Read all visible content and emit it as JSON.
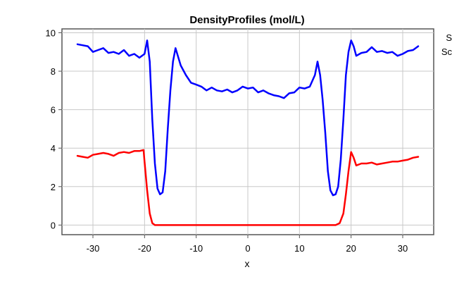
{
  "chart_data": {
    "type": "line",
    "title": "DensityProfiles (mol/L)",
    "xlabel": "x",
    "ylabel": "",
    "xlim": [
      -36,
      36
    ],
    "ylim": [
      -0.5,
      10.2
    ],
    "grid": true,
    "x_ticks": [
      -30,
      -20,
      -10,
      0,
      10,
      20,
      30
    ],
    "y_ticks": [
      0,
      2,
      4,
      6,
      8,
      10
    ],
    "tick_labels_x": [
      "-30",
      "-20",
      "-10",
      "0",
      "10",
      "20",
      "30"
    ],
    "tick_labels_y": [
      "0",
      "2",
      "4",
      "6",
      "8",
      "10"
    ],
    "legend": {
      "placement": "right, outside plot (cut off)",
      "entries": [
        "S",
        "Sc"
      ]
    },
    "series": [
      {
        "color": "#0000ff",
        "points": [
          [
            -33,
            9.4
          ],
          [
            -32,
            9.35
          ],
          [
            -31,
            9.3
          ],
          [
            -30,
            9.0
          ],
          [
            -29,
            9.1
          ],
          [
            -28,
            9.2
          ],
          [
            -27,
            8.95
          ],
          [
            -26,
            9.0
          ],
          [
            -25,
            8.9
          ],
          [
            -24,
            9.1
          ],
          [
            -23,
            8.8
          ],
          [
            -22,
            8.9
          ],
          [
            -21,
            8.7
          ],
          [
            -20,
            8.9
          ],
          [
            -19.5,
            9.6
          ],
          [
            -19,
            8.5
          ],
          [
            -18.5,
            5.5
          ],
          [
            -18,
            3.2
          ],
          [
            -17.5,
            1.9
          ],
          [
            -17,
            1.6
          ],
          [
            -16.5,
            1.7
          ],
          [
            -16,
            2.8
          ],
          [
            -15.5,
            5.0
          ],
          [
            -15,
            7.0
          ],
          [
            -14.5,
            8.5
          ],
          [
            -14,
            9.2
          ],
          [
            -13,
            8.3
          ],
          [
            -12,
            7.8
          ],
          [
            -11,
            7.4
          ],
          [
            -10,
            7.3
          ],
          [
            -9,
            7.2
          ],
          [
            -8,
            7.0
          ],
          [
            -7,
            7.15
          ],
          [
            -6,
            7.0
          ],
          [
            -5,
            6.95
          ],
          [
            -4,
            7.05
          ],
          [
            -3,
            6.9
          ],
          [
            -2,
            7.0
          ],
          [
            -1,
            7.2
          ],
          [
            0,
            7.1
          ],
          [
            1,
            7.15
          ],
          [
            2,
            6.9
          ],
          [
            3,
            7.0
          ],
          [
            4,
            6.85
          ],
          [
            5,
            6.75
          ],
          [
            6,
            6.7
          ],
          [
            7,
            6.6
          ],
          [
            8,
            6.85
          ],
          [
            9,
            6.9
          ],
          [
            10,
            7.15
          ],
          [
            11,
            7.1
          ],
          [
            12,
            7.2
          ],
          [
            13,
            7.8
          ],
          [
            13.5,
            8.5
          ],
          [
            14,
            7.8
          ],
          [
            14.5,
            6.5
          ],
          [
            15,
            4.8
          ],
          [
            15.5,
            2.8
          ],
          [
            16,
            1.8
          ],
          [
            16.5,
            1.55
          ],
          [
            17,
            1.6
          ],
          [
            17.5,
            2.0
          ],
          [
            18,
            3.4
          ],
          [
            18.5,
            5.5
          ],
          [
            19,
            7.8
          ],
          [
            19.5,
            9.0
          ],
          [
            20,
            9.6
          ],
          [
            20.5,
            9.3
          ],
          [
            21,
            8.8
          ],
          [
            22,
            8.95
          ],
          [
            23,
            9.0
          ],
          [
            24,
            9.25
          ],
          [
            25,
            9.0
          ],
          [
            26,
            9.05
          ],
          [
            27,
            8.95
          ],
          [
            28,
            9.0
          ],
          [
            29,
            8.8
          ],
          [
            30,
            8.9
          ],
          [
            31,
            9.05
          ],
          [
            32,
            9.1
          ],
          [
            33,
            9.3
          ]
        ]
      },
      {
        "color": "#ff0000",
        "points": [
          [
            -33,
            3.6
          ],
          [
            -32,
            3.55
          ],
          [
            -31,
            3.5
          ],
          [
            -30,
            3.65
          ],
          [
            -29,
            3.7
          ],
          [
            -28,
            3.75
          ],
          [
            -27,
            3.7
          ],
          [
            -26,
            3.6
          ],
          [
            -25,
            3.75
          ],
          [
            -24,
            3.8
          ],
          [
            -23,
            3.75
          ],
          [
            -22,
            3.85
          ],
          [
            -21,
            3.85
          ],
          [
            -20.2,
            3.9
          ],
          [
            -20,
            3.3
          ],
          [
            -19.5,
            1.8
          ],
          [
            -19,
            0.6
          ],
          [
            -18.5,
            0.1
          ],
          [
            -18,
            0.0
          ],
          [
            -10,
            0.0
          ],
          [
            0,
            0.0
          ],
          [
            10,
            0.0
          ],
          [
            17,
            0.0
          ],
          [
            17.8,
            0.1
          ],
          [
            18.5,
            0.6
          ],
          [
            19,
            1.6
          ],
          [
            19.5,
            2.8
          ],
          [
            20,
            3.8
          ],
          [
            20.5,
            3.5
          ],
          [
            21,
            3.1
          ],
          [
            22,
            3.2
          ],
          [
            23,
            3.2
          ],
          [
            24,
            3.25
          ],
          [
            25,
            3.15
          ],
          [
            26,
            3.2
          ],
          [
            27,
            3.25
          ],
          [
            28,
            3.3
          ],
          [
            29,
            3.3
          ],
          [
            30,
            3.35
          ],
          [
            31,
            3.4
          ],
          [
            32,
            3.5
          ],
          [
            33,
            3.55
          ]
        ]
      }
    ]
  }
}
